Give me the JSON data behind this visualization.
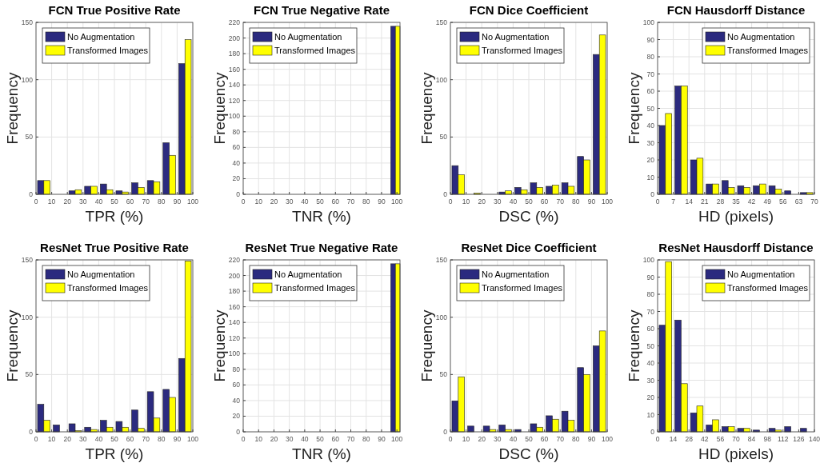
{
  "chart_data": [
    {
      "type": "histogram",
      "title": "FCN True Positive Rate",
      "xlabel": "TPR (%)",
      "ylabel": "Frequency",
      "bins": [
        0,
        10,
        20,
        30,
        40,
        50,
        60,
        70,
        80,
        90,
        100
      ],
      "xlim": [
        0,
        100
      ],
      "xticks": [
        0,
        10,
        20,
        30,
        40,
        50,
        60,
        70,
        80,
        90,
        100
      ],
      "ylim": [
        0,
        150
      ],
      "yticks": [
        0,
        50,
        100,
        150
      ],
      "grid": true,
      "legend": "top left",
      "series": [
        {
          "name": "No Augmentation",
          "color": "#2b2a7f",
          "values": [
            12,
            0,
            3,
            7,
            9,
            3,
            10,
            12,
            45,
            114
          ]
        },
        {
          "name": "Transformed Images",
          "color": "#ffff00",
          "values": [
            12,
            0,
            4,
            7,
            4,
            2,
            6,
            11,
            34,
            135
          ]
        }
      ]
    },
    {
      "type": "histogram",
      "title": "FCN True Negative Rate",
      "xlabel": "TNR (%)",
      "ylabel": "Frequency",
      "bins": [
        96,
        102
      ],
      "xlim": [
        0,
        102
      ],
      "xticks": [
        0,
        10,
        20,
        30,
        40,
        50,
        60,
        70,
        80,
        90,
        100
      ],
      "ylim": [
        0,
        220
      ],
      "yticks": [
        0,
        20,
        40,
        60,
        80,
        100,
        120,
        140,
        160,
        180,
        200,
        220
      ],
      "grid": true,
      "legend": "top left",
      "series": [
        {
          "name": "No Augmentation",
          "color": "#2b2a7f",
          "values": [
            215
          ]
        },
        {
          "name": "Transformed Images",
          "color": "#ffff00",
          "values": [
            215
          ]
        }
      ]
    },
    {
      "type": "histogram",
      "title": "FCN Dice Coefficient",
      "xlabel": "DSC (%)",
      "ylabel": "Frequency",
      "bins": [
        0,
        10,
        20,
        30,
        40,
        50,
        60,
        70,
        80,
        90,
        100
      ],
      "xlim": [
        0,
        100
      ],
      "xticks": [
        0,
        10,
        20,
        30,
        40,
        50,
        60,
        70,
        80,
        90,
        100
      ],
      "ylim": [
        0,
        150
      ],
      "yticks": [
        0,
        50,
        100,
        150
      ],
      "grid": true,
      "legend": "top left",
      "series": [
        {
          "name": "No Augmentation",
          "color": "#2b2a7f",
          "values": [
            25,
            0,
            0,
            2,
            6,
            10,
            7,
            10,
            33,
            122
          ]
        },
        {
          "name": "Transformed Images",
          "color": "#ffff00",
          "values": [
            17,
            1,
            0,
            3,
            4,
            6,
            8,
            7,
            30,
            139
          ]
        }
      ]
    },
    {
      "type": "histogram",
      "title": "FCN Hausdorff Distance",
      "xlabel": "HD (pixels)",
      "ylabel": "Frequency",
      "bins": [
        0,
        7,
        14,
        21,
        28,
        35,
        42,
        49,
        56,
        63,
        70
      ],
      "xlim": [
        0,
        70
      ],
      "xticks": [
        0,
        7,
        14,
        21,
        28,
        35,
        42,
        49,
        56,
        63,
        70
      ],
      "ylim": [
        0,
        100
      ],
      "yticks": [
        0,
        10,
        20,
        30,
        40,
        50,
        60,
        70,
        80,
        90,
        100
      ],
      "grid": true,
      "legend": "top right",
      "series": [
        {
          "name": "No Augmentation",
          "color": "#2b2a7f",
          "values": [
            40,
            63,
            20,
            6,
            8,
            5,
            5,
            5,
            2,
            1
          ]
        },
        {
          "name": "Transformed Images",
          "color": "#ffff00",
          "values": [
            47,
            63,
            21,
            6,
            4,
            4,
            6,
            3,
            0,
            1
          ]
        }
      ]
    },
    {
      "type": "histogram",
      "title": "ResNet True Positive Rate",
      "xlabel": "TPR (%)",
      "ylabel": "Frequency",
      "bins": [
        0,
        10,
        20,
        30,
        40,
        50,
        60,
        70,
        80,
        90,
        100
      ],
      "xlim": [
        0,
        100
      ],
      "xticks": [
        0,
        10,
        20,
        30,
        40,
        50,
        60,
        70,
        80,
        90,
        100
      ],
      "ylim": [
        0,
        150
      ],
      "yticks": [
        0,
        50,
        100,
        150
      ],
      "grid": true,
      "legend": "top left",
      "series": [
        {
          "name": "No Augmentation",
          "color": "#2b2a7f",
          "values": [
            24,
            6,
            7,
            4,
            10,
            9,
            19,
            35,
            37,
            64
          ]
        },
        {
          "name": "Transformed Images",
          "color": "#ffff00",
          "values": [
            10,
            0,
            1,
            2,
            4,
            4,
            3,
            12,
            30,
            149
          ]
        }
      ]
    },
    {
      "type": "histogram",
      "title": "ResNet True Negative Rate",
      "xlabel": "TNR (%)",
      "ylabel": "Frequency",
      "bins": [
        96,
        102
      ],
      "xlim": [
        0,
        102
      ],
      "xticks": [
        0,
        10,
        20,
        30,
        40,
        50,
        60,
        70,
        80,
        90,
        100
      ],
      "ylim": [
        0,
        220
      ],
      "yticks": [
        0,
        20,
        40,
        60,
        80,
        100,
        120,
        140,
        160,
        180,
        200,
        220
      ],
      "grid": true,
      "legend": "top left",
      "series": [
        {
          "name": "No Augmentation",
          "color": "#2b2a7f",
          "values": [
            215
          ]
        },
        {
          "name": "Transformed Images",
          "color": "#ffff00",
          "values": [
            215
          ]
        }
      ]
    },
    {
      "type": "histogram",
      "title": "ResNet Dice Coefficient",
      "xlabel": "DSC (%)",
      "ylabel": "Frequency",
      "bins": [
        0,
        10,
        20,
        30,
        40,
        50,
        60,
        70,
        80,
        90,
        100
      ],
      "xlim": [
        0,
        100
      ],
      "xticks": [
        0,
        10,
        20,
        30,
        40,
        50,
        60,
        70,
        80,
        90,
        100
      ],
      "ylim": [
        0,
        150
      ],
      "yticks": [
        0,
        50,
        100,
        150
      ],
      "grid": true,
      "legend": "top left",
      "series": [
        {
          "name": "No Augmentation",
          "color": "#2b2a7f",
          "values": [
            27,
            5,
            5,
            6,
            2,
            7,
            14,
            18,
            56,
            75
          ]
        },
        {
          "name": "Transformed Images",
          "color": "#ffff00",
          "values": [
            48,
            0,
            2,
            2,
            0,
            4,
            11,
            10,
            50,
            88
          ]
        }
      ]
    },
    {
      "type": "histogram",
      "title": "ResNet Hausdorff Distance",
      "xlabel": "HD (pixels)",
      "ylabel": "Frequency",
      "bins": [
        0,
        14,
        28,
        42,
        56,
        70,
        84,
        98,
        112,
        126,
        140
      ],
      "xlim": [
        0,
        140
      ],
      "xticks": [
        0,
        14,
        28,
        42,
        56,
        70,
        84,
        98,
        112,
        126,
        140
      ],
      "ylim": [
        0,
        100
      ],
      "yticks": [
        0,
        10,
        20,
        30,
        40,
        50,
        60,
        70,
        80,
        90,
        100
      ],
      "grid": true,
      "legend": "top right",
      "series": [
        {
          "name": "No Augmentation",
          "color": "#2b2a7f",
          "values": [
            62,
            65,
            11,
            4,
            3,
            2,
            1,
            2,
            3,
            2
          ]
        },
        {
          "name": "Transformed Images",
          "color": "#ffff00",
          "values": [
            99,
            28,
            15,
            7,
            3,
            2,
            0,
            1,
            0,
            0
          ]
        }
      ]
    }
  ]
}
